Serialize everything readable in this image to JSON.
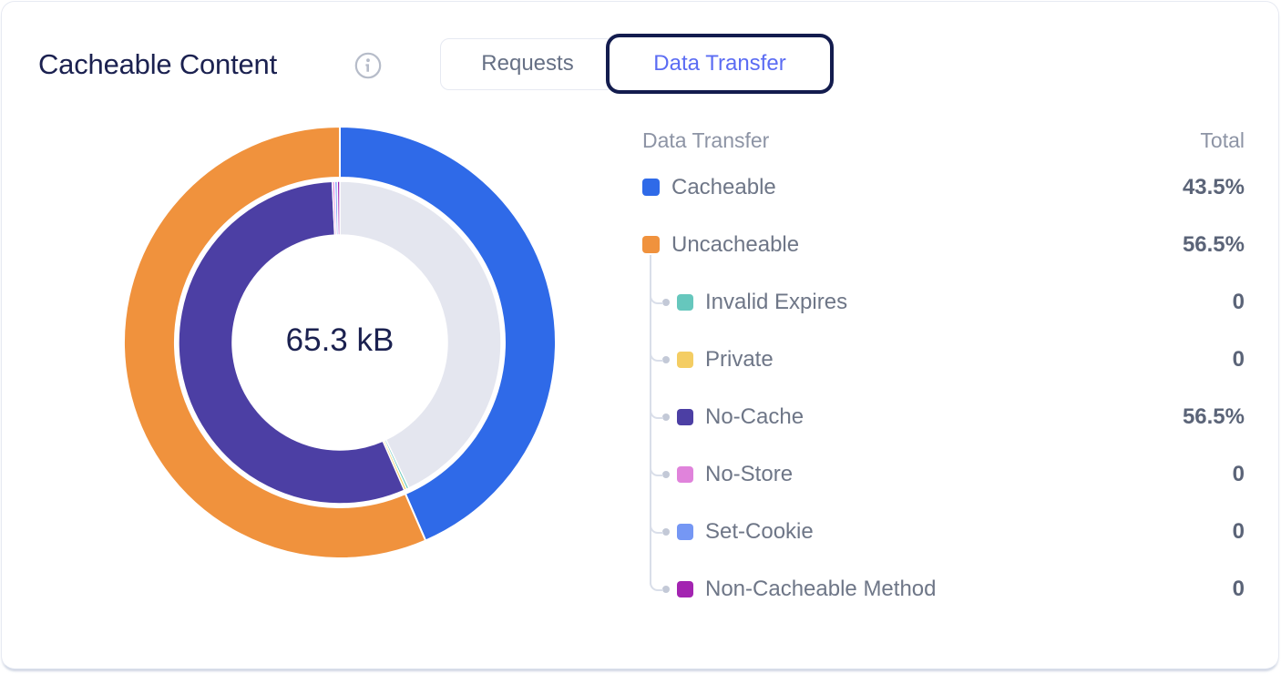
{
  "header": {
    "title": "Cacheable Content",
    "info_icon": "info-circle-icon",
    "tabs": [
      {
        "label": "Requests",
        "active": false
      },
      {
        "label": "Data Transfer",
        "active": true
      }
    ]
  },
  "chart_data": {
    "type": "donut",
    "title": "Cacheable Content — Data Transfer",
    "center_label": "65.3 kB",
    "legend_position": "right",
    "outer_ring": [
      {
        "name": "Cacheable",
        "value": 43.5,
        "color": "#2f6ae8"
      },
      {
        "name": "Uncacheable",
        "value": 56.5,
        "color": "#f0923d"
      }
    ],
    "inner_ring": [
      {
        "name": "Cacheable",
        "value": 43.5,
        "color": "#e4e6ef"
      },
      {
        "name": "Invalid Expires",
        "value": 0,
        "color": "#66c7bd"
      },
      {
        "name": "Private",
        "value": 0,
        "color": "#f4cd63"
      },
      {
        "name": "No-Cache",
        "value": 56.5,
        "color": "#4c3fa4"
      },
      {
        "name": "No-Store",
        "value": 0,
        "color": "#e083db"
      },
      {
        "name": "Set-Cookie",
        "value": 0,
        "color": "#7597f4"
      },
      {
        "name": "Non-Cacheable Method",
        "value": 0,
        "color": "#a324b1"
      }
    ]
  },
  "legend": {
    "header": {
      "left": "Data Transfer",
      "right": "Total"
    },
    "rows": [
      {
        "label": "Cacheable",
        "value": "43.5%",
        "color": "#2f6ae8",
        "sub": false
      },
      {
        "label": "Uncacheable",
        "value": "56.5%",
        "color": "#f0923d",
        "sub": false
      },
      {
        "label": "Invalid Expires",
        "value": "0",
        "color": "#66c7bd",
        "sub": true
      },
      {
        "label": "Private",
        "value": "0",
        "color": "#f4cd63",
        "sub": true
      },
      {
        "label": "No-Cache",
        "value": "56.5%",
        "color": "#4c3fa4",
        "sub": true
      },
      {
        "label": "No-Store",
        "value": "0",
        "color": "#e083db",
        "sub": true
      },
      {
        "label": "Set-Cookie",
        "value": "0",
        "color": "#7597f4",
        "sub": true
      },
      {
        "label": "Non-Cacheable Method",
        "value": "0",
        "color": "#a324b1",
        "sub": true
      }
    ]
  },
  "colors": {
    "title_text": "#1b2150",
    "active_tab_text": "#5b6cf3",
    "active_tab_border": "#131c4e",
    "inactive_tab_text": "#667085",
    "legend_header_text": "#8d94a5",
    "legend_label_text": "#6e7687",
    "legend_value_text": "#5b6478",
    "tree_line": "#d9dee9",
    "card_border": "#e7eaf2"
  }
}
